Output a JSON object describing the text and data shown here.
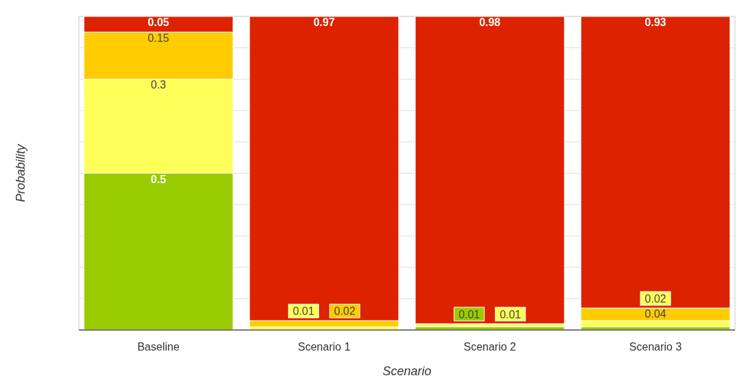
{
  "chart_data": {
    "type": "bar",
    "xlabel": "Scenario",
    "ylabel": "Probability",
    "categories": [
      "Baseline",
      "Scenario 1",
      "Scenario 2",
      "Scenario 3"
    ],
    "stacked": true,
    "ylim": [
      0,
      1
    ],
    "yticks": [
      {
        "value": 0,
        "label": null
      },
      {
        "value": 0.1,
        "label": null
      },
      {
        "value": 0.2,
        "label": null
      },
      {
        "value": 0.3,
        "label": null
      },
      {
        "value": 0.4,
        "label": null
      },
      {
        "value": 0.5,
        "label": null
      },
      {
        "value": 0.6,
        "label": null
      },
      {
        "value": 0.7,
        "label": null
      },
      {
        "value": 0.8,
        "label": null
      },
      {
        "value": 0.9,
        "label": null
      },
      {
        "value": 1,
        "label": null
      }
    ],
    "grid": true,
    "tick_labels": "x",
    "series": [
      {
        "color": "#99cc00",
        "values": [
          0.5,
          null,
          0.01,
          0.01
        ],
        "value_labels": [
          "0.5",
          null,
          "0.01",
          null
        ]
      },
      {
        "color": "#ffff5a",
        "values": [
          0.3,
          0.01,
          0.01,
          0.02
        ],
        "value_labels": [
          "0.3",
          "0.01",
          "0.01",
          "0.02"
        ]
      },
      {
        "color": "#ffcc00",
        "values": [
          0.15,
          0.02,
          null,
          0.04
        ],
        "value_labels": [
          "0.15",
          "0.02",
          null,
          "0.04"
        ]
      },
      {
        "color": "#dd2200",
        "values": [
          0.05,
          0.97,
          0.98,
          0.93
        ],
        "value_labels": [
          "0.05",
          "0.97",
          "0.98",
          "0.93"
        ]
      }
    ]
  }
}
